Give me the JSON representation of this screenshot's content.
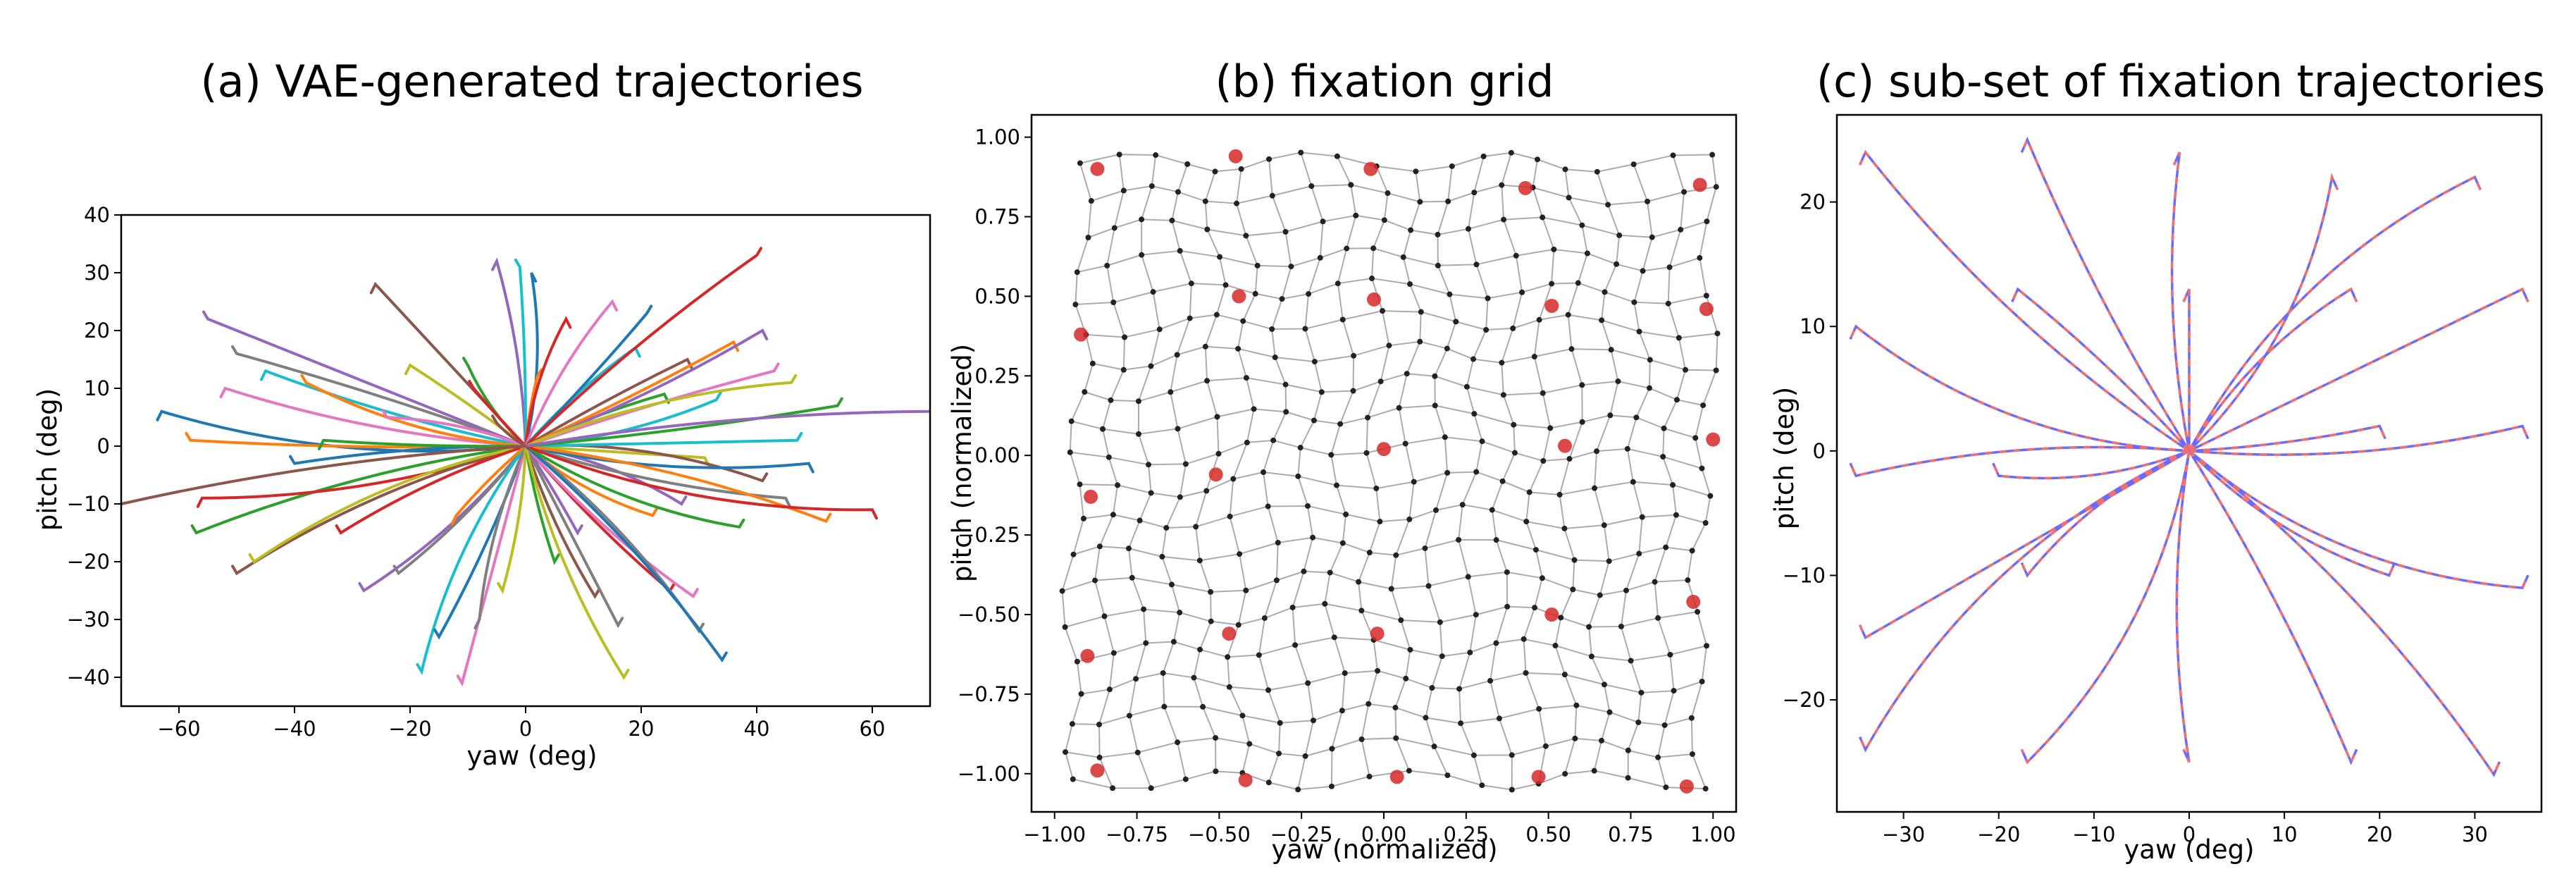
{
  "chart_data": [
    {
      "type": "line",
      "title": "(a) VAE-generated trajectories",
      "xlabel": "yaw (deg)",
      "ylabel": "pitch (deg)",
      "xlim": [
        -70,
        70
      ],
      "ylim": [
        -45,
        40
      ],
      "xticks": [
        -60,
        -40,
        -20,
        0,
        20,
        40,
        60
      ],
      "yticks": [
        -40,
        -30,
        -20,
        -10,
        0,
        10,
        20,
        30,
        40
      ],
      "grid": false,
      "series_colors": [
        "#1f77b4",
        "#ff7f0e",
        "#2ca02c",
        "#d62728",
        "#9467bd",
        "#8c564b",
        "#e377c2",
        "#7f7f7f",
        "#bcbd22",
        "#17becf"
      ],
      "trajectory_endpoints": [
        [
          -63,
          6
        ],
        [
          -58,
          1
        ],
        [
          -57,
          -15
        ],
        [
          -56,
          -9
        ],
        [
          -55,
          22
        ],
        [
          -50,
          -22
        ],
        [
          -52,
          10
        ],
        [
          -50,
          16
        ],
        [
          -47,
          -20
        ],
        [
          -45,
          13
        ],
        [
          -40,
          -3
        ],
        [
          -38,
          11
        ],
        [
          -35,
          1
        ],
        [
          -32,
          -15
        ],
        [
          -28,
          -25
        ],
        [
          -26,
          28
        ],
        [
          -24,
          5
        ],
        [
          -22,
          -22
        ],
        [
          -20,
          14
        ],
        [
          -18,
          -39
        ],
        [
          -15,
          -33
        ],
        [
          -12,
          -12
        ],
        [
          -10,
          14
        ],
        [
          -9,
          10
        ],
        [
          -5,
          32
        ],
        [
          -5,
          4
        ],
        [
          -11,
          -41
        ],
        [
          -8,
          -30
        ],
        [
          -4,
          -25
        ],
        [
          -1,
          31
        ],
        [
          1,
          30
        ],
        [
          2,
          12
        ],
        [
          5,
          -20
        ],
        [
          7,
          22
        ],
        [
          9,
          -15
        ],
        [
          12,
          -26
        ],
        [
          15,
          25
        ],
        [
          16,
          -31
        ],
        [
          17,
          -40
        ],
        [
          19,
          17
        ],
        [
          21,
          23
        ],
        [
          22,
          -12
        ],
        [
          24,
          9
        ],
        [
          25,
          -25
        ],
        [
          27,
          -10
        ],
        [
          28,
          15
        ],
        [
          29,
          -26
        ],
        [
          30,
          -32
        ],
        [
          31,
          -2
        ],
        [
          33,
          8
        ],
        [
          34,
          -37
        ],
        [
          36,
          18
        ],
        [
          37,
          -14
        ],
        [
          40,
          33
        ],
        [
          41,
          20
        ],
        [
          41,
          -6
        ],
        [
          43,
          13
        ],
        [
          45,
          -9
        ],
        [
          46,
          11
        ],
        [
          47,
          1
        ],
        [
          49,
          -3
        ],
        [
          52,
          -13
        ],
        [
          54,
          7
        ],
        [
          60,
          -11
        ],
        [
          70,
          6
        ],
        [
          -70,
          -10
        ]
      ]
    },
    {
      "type": "scatter",
      "title": "(b) fixation grid",
      "xlabel": "yaw (normalized)",
      "ylabel": "pitch (normalized)",
      "xlim": [
        -1.07,
        1.07
      ],
      "ylim": [
        -1.12,
        1.07
      ],
      "xticks": [
        "−1.00",
        "−0.75",
        "−0.50",
        "−0.25",
        "0.00",
        "0.25",
        "0.50",
        "0.75",
        "1.00"
      ],
      "yticks": [
        "−1.00",
        "−0.75",
        "−0.50",
        "−0.25",
        "0.00",
        "0.25",
        "0.50",
        "0.75",
        "1.00"
      ],
      "grid_rows": 20,
      "grid_cols": 20,
      "highlight_points": [
        [
          -0.87,
          0.9
        ],
        [
          -0.45,
          0.94
        ],
        [
          -0.04,
          0.9
        ],
        [
          0.43,
          0.84
        ],
        [
          0.96,
          0.85
        ],
        [
          -0.92,
          0.38
        ],
        [
          -0.44,
          0.5
        ],
        [
          -0.03,
          0.49
        ],
        [
          0.51,
          0.47
        ],
        [
          0.98,
          0.46
        ],
        [
          -0.89,
          -0.13
        ],
        [
          -0.51,
          -0.06
        ],
        [
          0.0,
          0.02
        ],
        [
          0.55,
          0.03
        ],
        [
          1.0,
          0.05
        ],
        [
          -0.9,
          -0.63
        ],
        [
          -0.47,
          -0.56
        ],
        [
          -0.02,
          -0.56
        ],
        [
          0.51,
          -0.5
        ],
        [
          0.94,
          -0.46
        ],
        [
          -0.87,
          -0.99
        ],
        [
          -0.42,
          -1.02
        ],
        [
          0.04,
          -1.01
        ],
        [
          0.47,
          -1.01
        ],
        [
          0.92,
          -1.04
        ]
      ],
      "grid_color": "#888888",
      "point_color": "#222222",
      "highlight_color": "#d62728"
    },
    {
      "type": "line",
      "title": "(c) sub-set of fixation trajectories",
      "xlabel": "yaw (deg)",
      "ylabel": "pitch (deg)",
      "xlim": [
        -37,
        37
      ],
      "ylim": [
        -29,
        27
      ],
      "xticks": [
        -30,
        -20,
        -10,
        0,
        10,
        20,
        30
      ],
      "yticks": [
        -20,
        -10,
        0,
        10,
        20
      ],
      "series_colors": [
        "#6a6aff",
        "#f07070"
      ],
      "trajectory_endpoints": [
        [
          -35,
          10
        ],
        [
          -34,
          24
        ],
        [
          -34,
          -15
        ],
        [
          -35,
          -2
        ],
        [
          -34,
          -24
        ],
        [
          -20,
          -2
        ],
        [
          -17,
          25
        ],
        [
          -18,
          13
        ],
        [
          -17,
          -10
        ],
        [
          -17,
          -25
        ],
        [
          -1,
          24
        ],
        [
          0,
          13
        ],
        [
          0,
          -25
        ],
        [
          15,
          22
        ],
        [
          17,
          13
        ],
        [
          17,
          -25
        ],
        [
          20,
          2
        ],
        [
          21,
          -10
        ],
        [
          30,
          22
        ],
        [
          32,
          -26
        ],
        [
          35,
          13
        ],
        [
          35,
          2
        ],
        [
          35,
          -11
        ]
      ]
    }
  ]
}
